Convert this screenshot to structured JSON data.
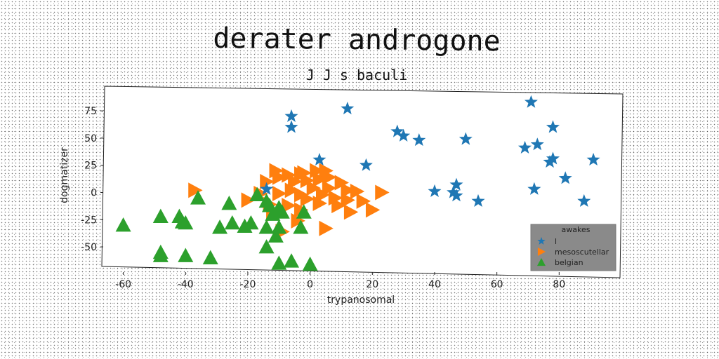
{
  "chart_data": {
    "type": "scatter",
    "title": "derater androgone",
    "subtitle": "J J s baculi",
    "xlabel": "trypanosomal",
    "ylabel": "dogmatizer",
    "xlim": [
      -66,
      100
    ],
    "ylim": [
      -68,
      97
    ],
    "xticks": [
      -60,
      -40,
      -20,
      0,
      20,
      40,
      60,
      80
    ],
    "yticks": [
      75,
      50,
      25,
      0,
      -25,
      -50
    ],
    "grid": false,
    "legend": {
      "title": "awakes",
      "placement": "lower-right"
    },
    "series": [
      {
        "name": "l",
        "marker": "star",
        "color": "#1f77b4",
        "points": [
          [
            -6,
            70
          ],
          [
            -6,
            60
          ],
          [
            12,
            77
          ],
          [
            71,
            83
          ],
          [
            28,
            56
          ],
          [
            30,
            52
          ],
          [
            35,
            48
          ],
          [
            50,
            49
          ],
          [
            78,
            60
          ],
          [
            69,
            41
          ],
          [
            73,
            44
          ],
          [
            77,
            28
          ],
          [
            78,
            31
          ],
          [
            91,
            30
          ],
          [
            3,
            30
          ],
          [
            18,
            25
          ],
          [
            -14,
            3
          ],
          [
            82,
            13
          ],
          [
            40,
            1
          ],
          [
            46,
            0
          ],
          [
            47,
            7
          ],
          [
            47,
            -3
          ],
          [
            72,
            3
          ],
          [
            54,
            -8
          ],
          [
            88,
            -8
          ]
        ]
      },
      {
        "name": "mesoscutellar",
        "marker": "triangle-right",
        "color": "#ff7f0e",
        "points": [
          [
            -37,
            2
          ],
          [
            -11,
            20
          ],
          [
            -7,
            16
          ],
          [
            -3,
            17
          ],
          [
            2,
            20
          ],
          [
            5,
            20
          ],
          [
            -14,
            10
          ],
          [
            -10,
            14
          ],
          [
            -5,
            10
          ],
          [
            -1,
            11
          ],
          [
            3,
            12
          ],
          [
            6,
            14
          ],
          [
            10,
            9
          ],
          [
            12,
            2
          ],
          [
            23,
            0
          ],
          [
            -16,
            -1
          ],
          [
            -10,
            -1
          ],
          [
            -6,
            2
          ],
          [
            -3,
            -2
          ],
          [
            1,
            4
          ],
          [
            4,
            -2
          ],
          [
            8,
            -5
          ],
          [
            12,
            -7
          ],
          [
            17,
            -8
          ],
          [
            20,
            -16
          ],
          [
            -20,
            -7
          ],
          [
            -13,
            -11
          ],
          [
            -7,
            -12
          ],
          [
            -3,
            -16
          ],
          [
            3,
            -10
          ],
          [
            9,
            -12
          ],
          [
            13,
            -18
          ],
          [
            -4,
            -26
          ],
          [
            -9,
            -36
          ],
          [
            5,
            -33
          ],
          [
            -1,
            -6
          ],
          [
            6,
            4
          ],
          [
            15,
            1
          ],
          [
            -2,
            18
          ],
          [
            -12,
            -20
          ]
        ]
      },
      {
        "name": "belgian",
        "marker": "triangle-up",
        "color": "#2ca02c",
        "points": [
          [
            -60,
            -30
          ],
          [
            -48,
            -22
          ],
          [
            -42,
            -22
          ],
          [
            -41,
            -27
          ],
          [
            -40,
            -28
          ],
          [
            -36,
            -5
          ],
          [
            -29,
            -32
          ],
          [
            -26,
            -10
          ],
          [
            -25,
            -28
          ],
          [
            -21,
            -31
          ],
          [
            -19,
            -28
          ],
          [
            -17,
            -2
          ],
          [
            -14,
            -8
          ],
          [
            -13,
            -12
          ],
          [
            -12,
            -20
          ],
          [
            -10,
            -14
          ],
          [
            -14,
            -32
          ],
          [
            -10,
            -32
          ],
          [
            -3,
            -32
          ],
          [
            -2,
            -18
          ],
          [
            -11,
            -40
          ],
          [
            -14,
            -50
          ],
          [
            -48,
            -55
          ],
          [
            -48,
            -58
          ],
          [
            -40,
            -58
          ],
          [
            -32,
            -60
          ],
          [
            -10,
            -65
          ],
          [
            -6,
            -63
          ],
          [
            0,
            -66
          ],
          [
            -9,
            -18
          ]
        ]
      }
    ]
  }
}
